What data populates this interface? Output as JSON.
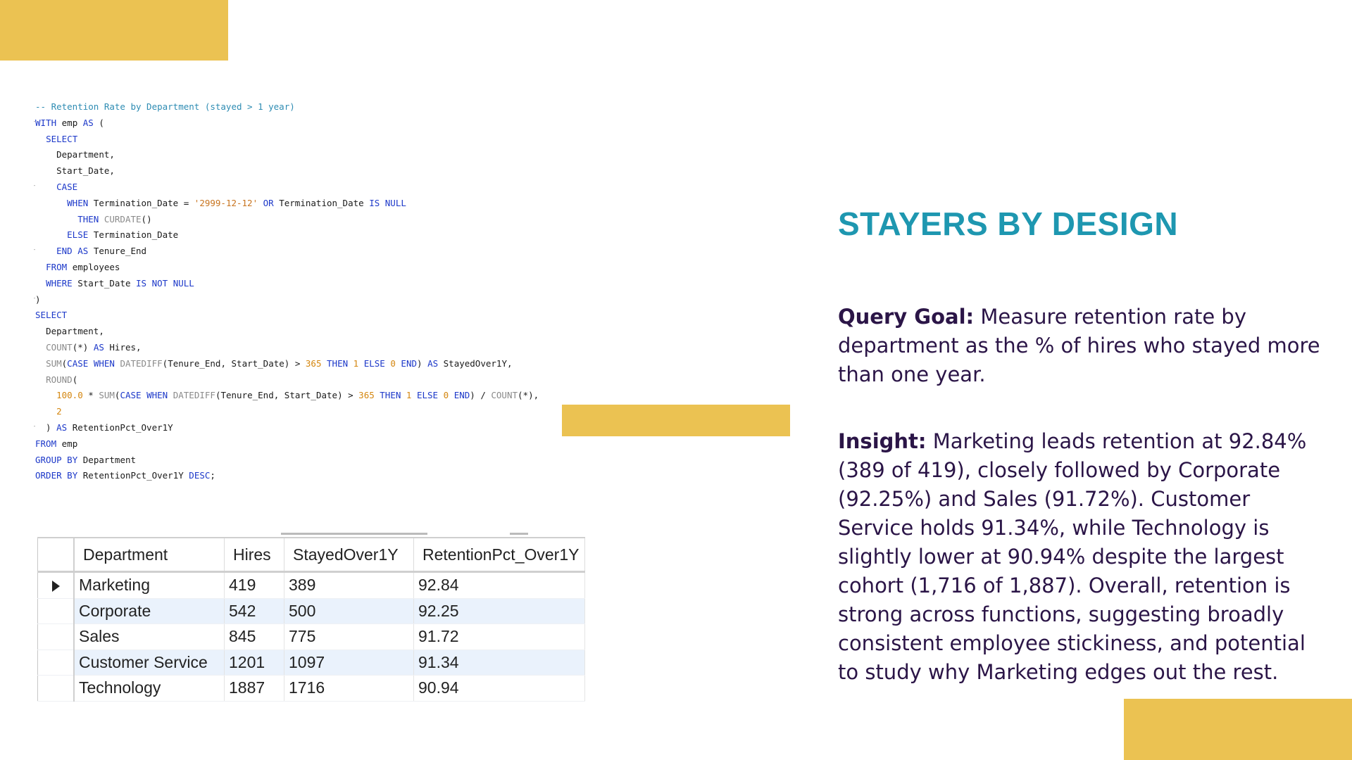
{
  "code_lines": [
    "-- Retention Rate by Department (stayed > 1 year)",
    "WITH emp AS (",
    "  SELECT",
    "    Department,",
    "    Start_Date,",
    "    CASE",
    "      WHEN Termination_Date = '2999-12-12' OR Termination_Date IS NULL",
    "        THEN CURDATE()",
    "      ELSE Termination_Date",
    "    END AS Tenure_End",
    "  FROM employees",
    "  WHERE Start_Date IS NOT NULL",
    ")",
    "SELECT",
    "  Department,",
    "  COUNT(*) AS Hires,",
    "  SUM(CASE WHEN DATEDIFF(Tenure_End, Start_Date) > 365 THEN 1 ELSE 0 END) AS StayedOver1Y,",
    "  ROUND(",
    "    100.0 * SUM(CASE WHEN DATEDIFF(Tenure_End, Start_Date) > 365 THEN 1 ELSE 0 END) / COUNT(*),",
    "    2",
    "  ) AS RetentionPct_Over1Y",
    "FROM emp",
    "GROUP BY Department",
    "ORDER BY RetentionPct_Over1Y DESC;"
  ],
  "grid": {
    "columns": [
      "Department",
      "Hires",
      "StayedOver1Y",
      "RetentionPct_Over1Y"
    ],
    "rows": [
      [
        "Marketing",
        "419",
        "389",
        "92.84"
      ],
      [
        "Corporate",
        "542",
        "500",
        "92.25"
      ],
      [
        "Sales",
        "845",
        "775",
        "91.72"
      ],
      [
        "Customer Service",
        "1201",
        "1097",
        "91.34"
      ],
      [
        "Technology",
        "1887",
        "1716",
        "90.94"
      ]
    ]
  },
  "panel": {
    "title": "STAYERS BY DESIGN",
    "goal_label": "Query Goal:",
    "goal_text": " Measure retention rate by department as the % of hires who stayed more than one year.",
    "insight_label": "Insight:",
    "insight_text": " Marketing leads retention at 92.84% (389 of 419), closely followed by Corporate (92.25%) and Sales (91.72%). Customer Service holds 91.34%, while Technology is slightly lower at 90.94% despite the largest cohort (1,716 of 1,887). Overall, retention is strong across functions, suggesting broadly consistent employee stickiness, and potential to study why Marketing edges out the rest."
  },
  "colors": {
    "accent": "#EBC252",
    "title": "#1E97B0",
    "body_text": "#2b1547",
    "grid_alt_row": "#eaf2fc"
  }
}
